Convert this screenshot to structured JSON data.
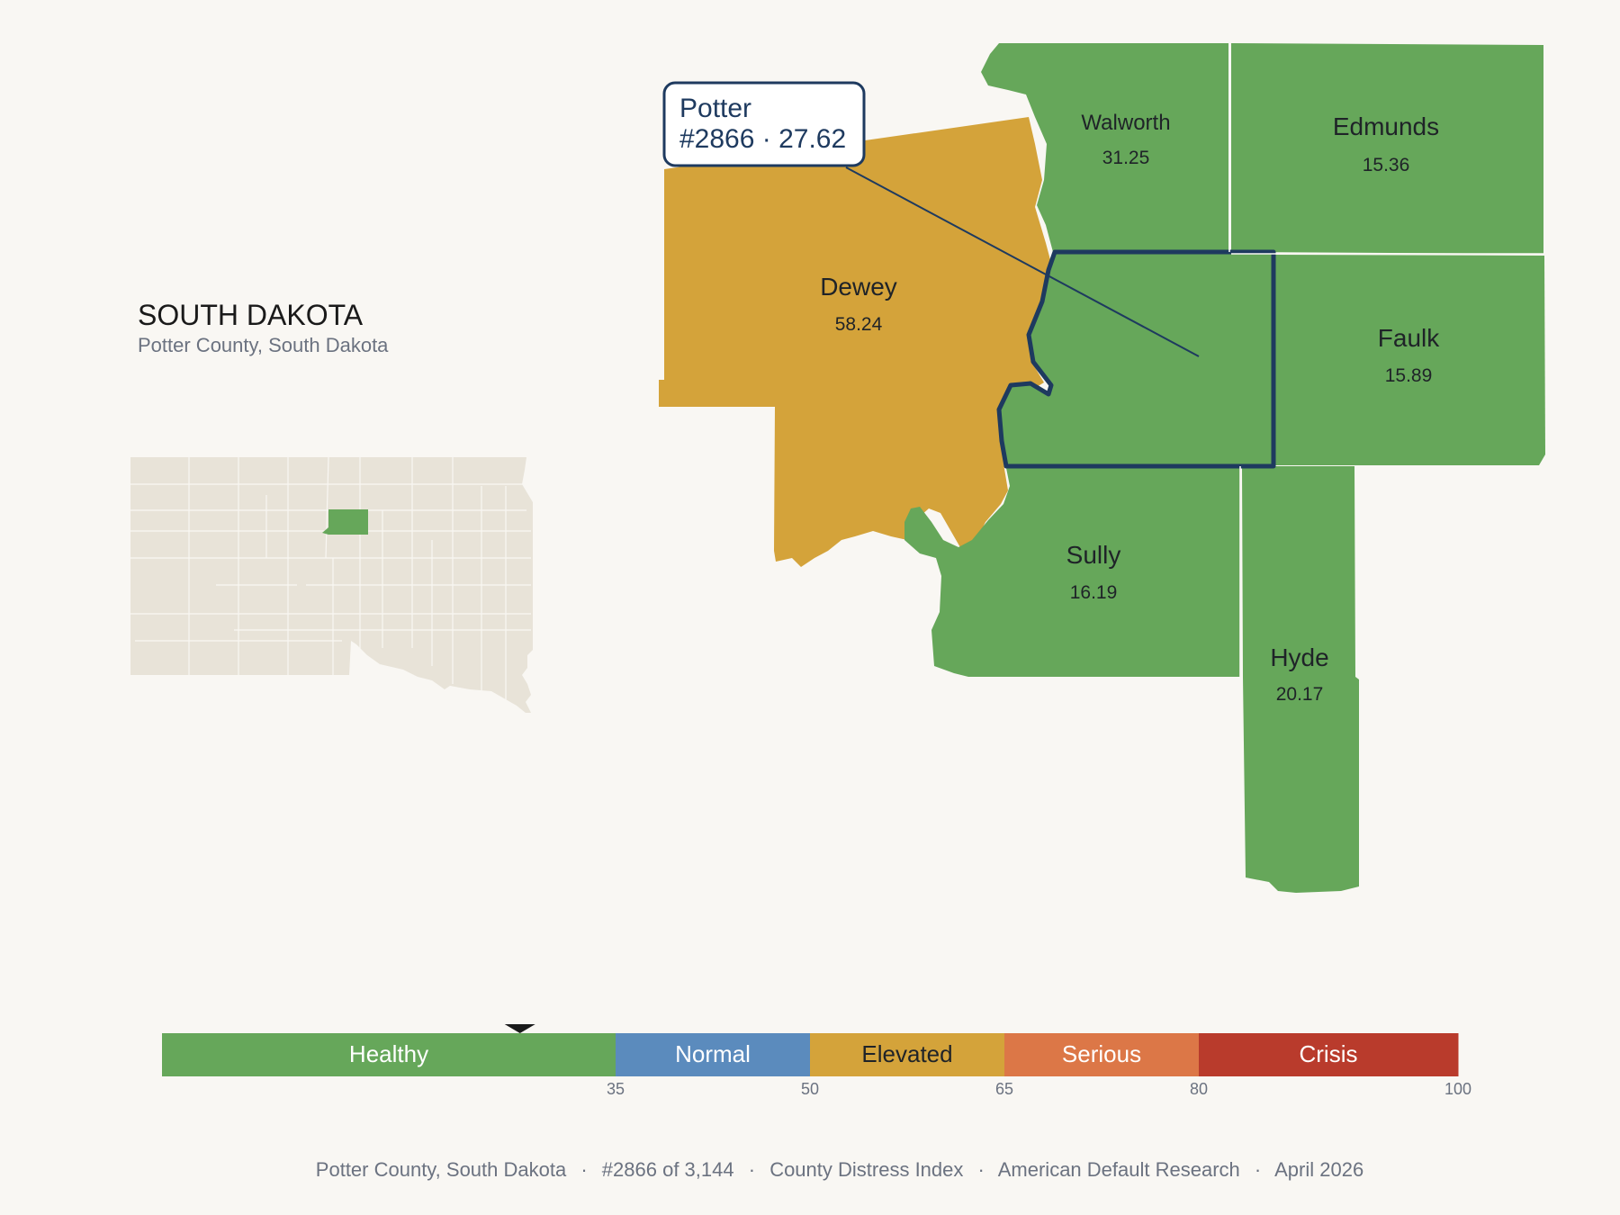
{
  "state": {
    "title": "SOUTH DAKOTA",
    "subtitle": "Potter County, South Dakota"
  },
  "callout": {
    "name": "Potter",
    "detail": "#2866 · 27.62"
  },
  "counties": {
    "walworth": {
      "name": "Walworth",
      "value": "31.25",
      "color": "#66a75a"
    },
    "edmunds": {
      "name": "Edmunds",
      "value": "15.36",
      "color": "#66a75a"
    },
    "dewey": {
      "name": "Dewey",
      "value": "58.24",
      "color": "#d4a33a"
    },
    "faulk": {
      "name": "Faulk",
      "value": "15.89",
      "color": "#66a75a"
    },
    "sully": {
      "name": "Sully",
      "value": "16.19",
      "color": "#66a75a"
    },
    "hyde": {
      "name": "Hyde",
      "value": "20.17",
      "color": "#66a75a"
    },
    "potter": {
      "value": 27.62,
      "color": "#66a75a",
      "outline": "#1e3a5f"
    }
  },
  "legend": {
    "min": 0,
    "max": 100,
    "marker_value": 27.62,
    "segments": [
      {
        "label": "Healthy",
        "from": 0,
        "to": 35,
        "color": "#66a75a",
        "text_color": "#ffffff"
      },
      {
        "label": "Normal",
        "from": 35,
        "to": 50,
        "color": "#5b8bbd",
        "text_color": "#ffffff"
      },
      {
        "label": "Elevated",
        "from": 50,
        "to": 65,
        "color": "#d4a33a",
        "text_color": "#1f2328"
      },
      {
        "label": "Serious",
        "from": 65,
        "to": 80,
        "color": "#dc7747",
        "text_color": "#ffffff"
      },
      {
        "label": "Crisis",
        "from": 80,
        "to": 100,
        "color": "#b93b2c",
        "text_color": "#ffffff"
      }
    ],
    "ticks": [
      "35",
      "50",
      "65",
      "80",
      "100"
    ]
  },
  "footer": {
    "place": "Potter County, South Dakota",
    "rank": "#2866 of 3,144",
    "index": "County Distress Index",
    "org": "American Default Research",
    "date": "April 2026",
    "sep": "·"
  },
  "colors": {
    "background": "#f9f7f3",
    "inset_fill": "#e8e3d8",
    "inset_highlight": "#66a75a"
  }
}
